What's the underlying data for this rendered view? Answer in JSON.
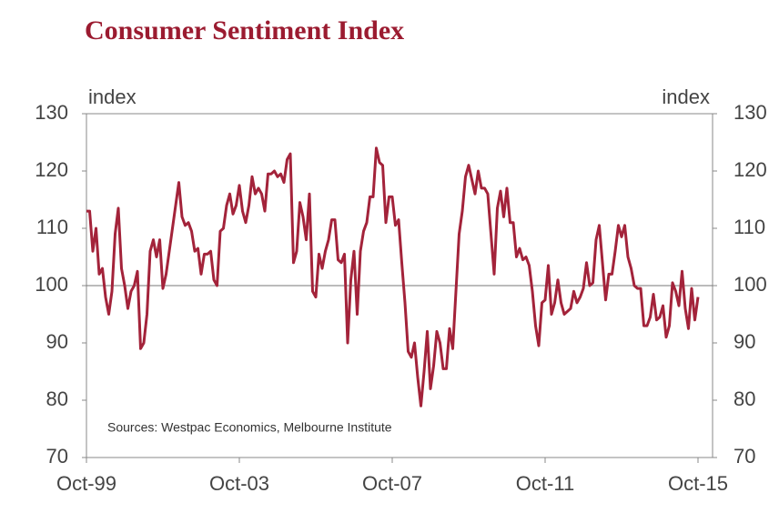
{
  "chart_data": {
    "type": "line",
    "title": "Consumer Sentiment Index",
    "y_label": "index",
    "y2_label": "index",
    "annotation": "Sources: Westpac Economics, Melbourne Institute",
    "categories": [
      "Oct-99",
      null,
      null,
      null,
      null,
      null,
      null,
      null,
      null,
      null,
      null,
      null,
      null,
      null,
      null,
      null,
      null,
      null,
      null,
      null,
      null,
      null,
      null,
      null,
      null,
      null,
      null,
      null,
      null,
      null,
      null,
      null,
      null,
      null,
      null,
      null,
      null,
      null,
      null,
      null,
      null,
      null,
      null,
      null,
      null,
      null,
      null,
      null,
      "Oct-03",
      null,
      null,
      null,
      null,
      null,
      null,
      null,
      null,
      null,
      null,
      null,
      null,
      null,
      null,
      null,
      null,
      null,
      null,
      null,
      null,
      null,
      null,
      null,
      null,
      null,
      null,
      null,
      null,
      null,
      null,
      null,
      null,
      null,
      null,
      null,
      null,
      null,
      null,
      null,
      null,
      null,
      null,
      null,
      null,
      null,
      null,
      null,
      "Oct-07",
      null,
      null,
      null,
      null,
      null,
      null,
      null,
      null,
      null,
      null,
      null,
      null,
      null,
      null,
      null,
      null,
      null,
      null,
      null,
      null,
      null,
      null,
      null,
      null,
      null,
      null,
      null,
      null,
      null,
      null,
      null,
      null,
      null,
      null,
      null,
      null,
      null,
      null,
      null,
      null,
      null,
      null,
      null,
      null,
      null,
      null,
      null,
      "Oct-11",
      null,
      null,
      null,
      null,
      null,
      null,
      null,
      null,
      null,
      null,
      null,
      null,
      null,
      null,
      null,
      null,
      null,
      null,
      null,
      null,
      null,
      null,
      null,
      null,
      null,
      null,
      null,
      null,
      null,
      null,
      null,
      null,
      null,
      null,
      null,
      null,
      null,
      null,
      null,
      null,
      null,
      null,
      null,
      null,
      null,
      null,
      null,
      "Oct-15"
    ],
    "values": [
      113,
      113,
      106,
      110,
      102,
      103,
      98,
      95,
      99,
      109,
      113.5,
      103,
      100,
      96,
      99,
      100,
      102.5,
      89,
      90,
      95,
      106,
      108,
      105,
      108,
      99.5,
      102,
      106,
      110,
      114,
      118,
      112,
      110.5,
      111,
      109.5,
      106,
      106.5,
      102,
      105.5,
      105.5,
      106,
      101,
      100,
      109.5,
      110,
      114,
      116,
      112.5,
      114,
      117.5,
      113,
      111,
      114,
      119,
      116,
      117,
      116,
      113,
      119.5,
      119.5,
      120,
      119,
      119.5,
      118,
      122,
      123,
      104,
      106,
      114.5,
      112,
      108,
      116,
      99,
      98,
      105.5,
      103,
      106,
      108,
      111.5,
      111.5,
      104.5,
      104,
      105.5,
      90,
      101,
      106,
      95,
      106,
      109.5,
      111,
      115.5,
      115.5,
      124,
      121.5,
      121,
      111,
      115.5,
      115.5,
      110.5,
      111.5,
      104,
      97,
      88.5,
      87.5,
      90,
      84,
      79,
      85,
      92,
      82,
      86,
      92,
      90,
      85.5,
      85.5,
      92.5,
      89,
      99,
      109,
      113,
      119,
      121,
      118.5,
      116,
      120,
      117,
      117,
      116,
      109,
      102,
      113.5,
      116.5,
      112,
      117,
      111,
      111,
      105,
      106.5,
      104.5,
      105,
      103.5,
      99,
      93,
      89.5,
      97,
      97.5,
      103.5,
      95,
      97,
      101,
      97,
      95,
      95.5,
      96,
      99,
      97,
      98,
      99.5,
      104,
      100,
      100.5,
      108,
      110.5,
      104,
      97.5,
      102,
      102,
      106,
      110.5,
      108.5,
      110.5,
      105,
      103,
      100,
      99.5,
      99.5,
      93,
      93,
      94.5,
      98.5,
      94,
      94.5,
      96.5,
      91,
      93,
      100.5,
      99,
      96.5,
      102.5,
      96,
      92.5,
      99.5,
      94,
      98
    ],
    "color": "#a3233a",
    "ylim": [
      70,
      130
    ],
    "yticks": [
      70,
      80,
      90,
      100,
      110,
      120,
      130
    ],
    "y2lim": [
      70,
      130
    ],
    "y2ticks": [
      70,
      80,
      90,
      100,
      110,
      120,
      130
    ],
    "hline": 100
  }
}
